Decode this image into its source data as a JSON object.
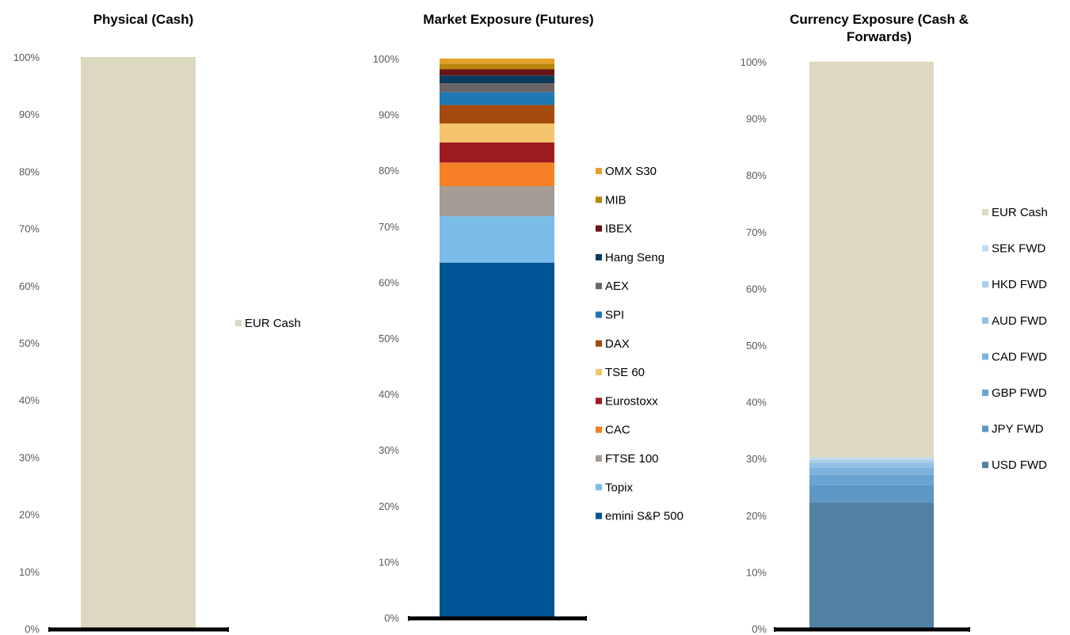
{
  "chart_data": [
    {
      "type": "bar",
      "stacked": true,
      "title": "Physical  (Cash)",
      "title_lines": [
        "Physical  (Cash)"
      ],
      "categories": [
        ""
      ],
      "ylim": [
        0,
        100
      ],
      "yticks": [
        "0%",
        "10%",
        "20%",
        "30%",
        "40%",
        "50%",
        "60%",
        "70%",
        "80%",
        "90%",
        "100%"
      ],
      "grid": false,
      "legend_position": "right",
      "series": [
        {
          "name": "EUR Cash",
          "values": [
            100
          ],
          "color": "#DDD8C0"
        }
      ]
    },
    {
      "type": "bar",
      "stacked": true,
      "title": "Market Exposure (Futures)",
      "title_lines": [
        "Market Exposure (Futures)"
      ],
      "categories": [
        ""
      ],
      "ylim": [
        0,
        100
      ],
      "yticks": [
        "0%",
        "10%",
        "20%",
        "30%",
        "40%",
        "50%",
        "60%",
        "70%",
        "80%",
        "90%",
        "100%"
      ],
      "grid": false,
      "legend_position": "right",
      "series": [
        {
          "name": "emini S&P 500",
          "values": [
            63.5
          ],
          "color": "#005596"
        },
        {
          "name": "Topix",
          "values": [
            8.3
          ],
          "color": "#7BBCE8"
        },
        {
          "name": "FTSE 100",
          "values": [
            5.4
          ],
          "color": "#A59D95"
        },
        {
          "name": "CAC",
          "values": [
            4.2
          ],
          "color": "#F58025"
        },
        {
          "name": "Eurostoxx",
          "values": [
            3.6
          ],
          "color": "#9E1B20"
        },
        {
          "name": "TSE 60",
          "values": [
            3.4
          ],
          "color": "#F3C46B"
        },
        {
          "name": "DAX",
          "values": [
            3.3
          ],
          "color": "#A44A0C"
        },
        {
          "name": "SPI",
          "values": [
            2.3
          ],
          "color": "#1F77B4"
        },
        {
          "name": "AEX",
          "values": [
            1.6
          ],
          "color": "#6C6464"
        },
        {
          "name": "Hang Seng",
          "values": [
            1.4
          ],
          "color": "#0B3C5D"
        },
        {
          "name": "IBEX",
          "values": [
            1.1
          ],
          "color": "#6A1417"
        },
        {
          "name": "MIB",
          "values": [
            1.0
          ],
          "color": "#B8860B"
        },
        {
          "name": "OMX S30",
          "values": [
            0.9
          ],
          "color": "#E5A028"
        }
      ]
    },
    {
      "type": "bar",
      "stacked": true,
      "title": "Currency Exposure (Cash & Forwards)",
      "title_lines": [
        "Currency Exposure (Cash &",
        "Forwards)"
      ],
      "categories": [
        ""
      ],
      "ylim": [
        0,
        100
      ],
      "yticks": [
        "0%",
        "10%",
        "20%",
        "30%",
        "40%",
        "50%",
        "60%",
        "70%",
        "80%",
        "90%",
        "100%"
      ],
      "grid": false,
      "legend_position": "right",
      "series": [
        {
          "name": "USD FWD",
          "values": [
            22.3
          ],
          "color": "#5181A3"
        },
        {
          "name": "JPY FWD",
          "values": [
            3.0
          ],
          "color": "#5E97C3"
        },
        {
          "name": "GBP FWD",
          "values": [
            1.8
          ],
          "color": "#6AA4D2"
        },
        {
          "name": "CAD FWD",
          "values": [
            1.3
          ],
          "color": "#7DB2DD"
        },
        {
          "name": "AUD FWD",
          "values": [
            0.9
          ],
          "color": "#92C0E4"
        },
        {
          "name": "HKD FWD",
          "values": [
            0.5
          ],
          "color": "#A8CEEA"
        },
        {
          "name": "SEK FWD",
          "values": [
            0.4
          ],
          "color": "#BFDBF0"
        },
        {
          "name": "EUR Cash",
          "values": [
            69.8
          ],
          "color": "#DDD8C0"
        }
      ]
    }
  ]
}
